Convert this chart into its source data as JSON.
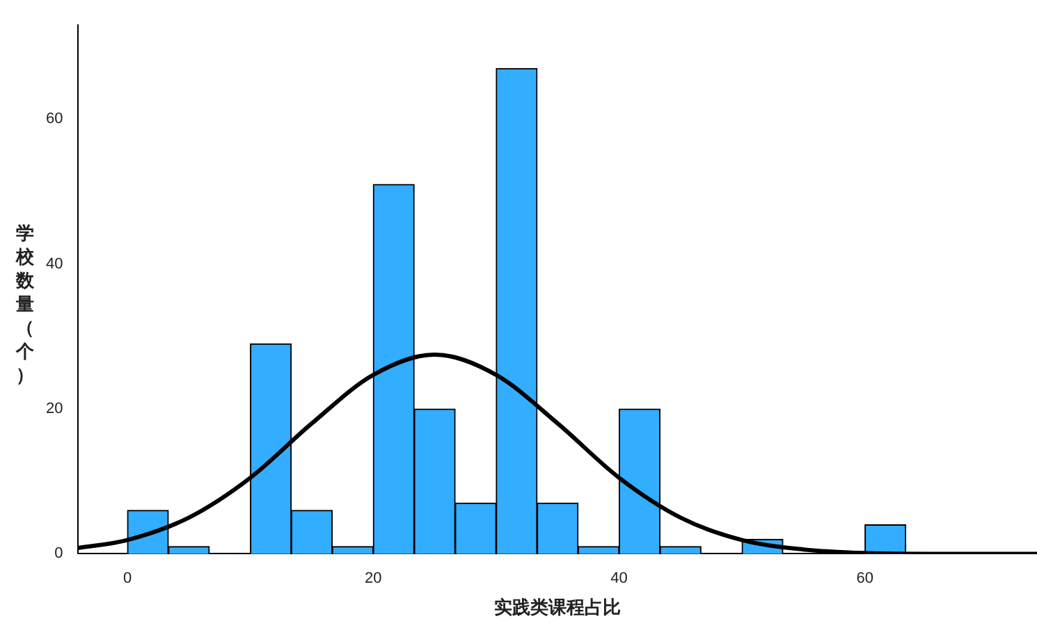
{
  "chart_data": {
    "type": "histogram",
    "xlabel": "实践类课程占比",
    "ylabel": "学校数量（个）",
    "bins": [
      0,
      3.33,
      6.67,
      10,
      13.33,
      16.67,
      20,
      23.33,
      26.67,
      30,
      33.33,
      36.67,
      40,
      43.33,
      46.67,
      50,
      53.33,
      56.67,
      60,
      63.33
    ],
    "values": [
      6,
      1,
      0,
      29,
      6,
      1,
      51,
      20,
      7,
      67,
      7,
      1,
      20,
      1,
      0,
      2,
      0,
      0,
      4
    ],
    "color": "#33adff",
    "series": [
      {
        "type": "line",
        "color": "#000000",
        "x": [
          -4,
          0,
          5,
          10,
          15,
          20,
          25,
          30,
          35,
          40,
          45,
          50,
          55,
          60,
          65,
          74
        ],
        "values": [
          0.8,
          1.9,
          5,
          10.5,
          18,
          24.7,
          27.5,
          24.7,
          18,
          10.5,
          5,
          1.9,
          0.6,
          0.1,
          0,
          0
        ]
      }
    ],
    "xlim": [
      -4,
      74
    ],
    "xticks": [
      0,
      20,
      40,
      60
    ],
    "ylim": [
      0,
      73
    ],
    "yticks": [
      0,
      20,
      40,
      60
    ],
    "grid": false,
    "legend": false
  }
}
